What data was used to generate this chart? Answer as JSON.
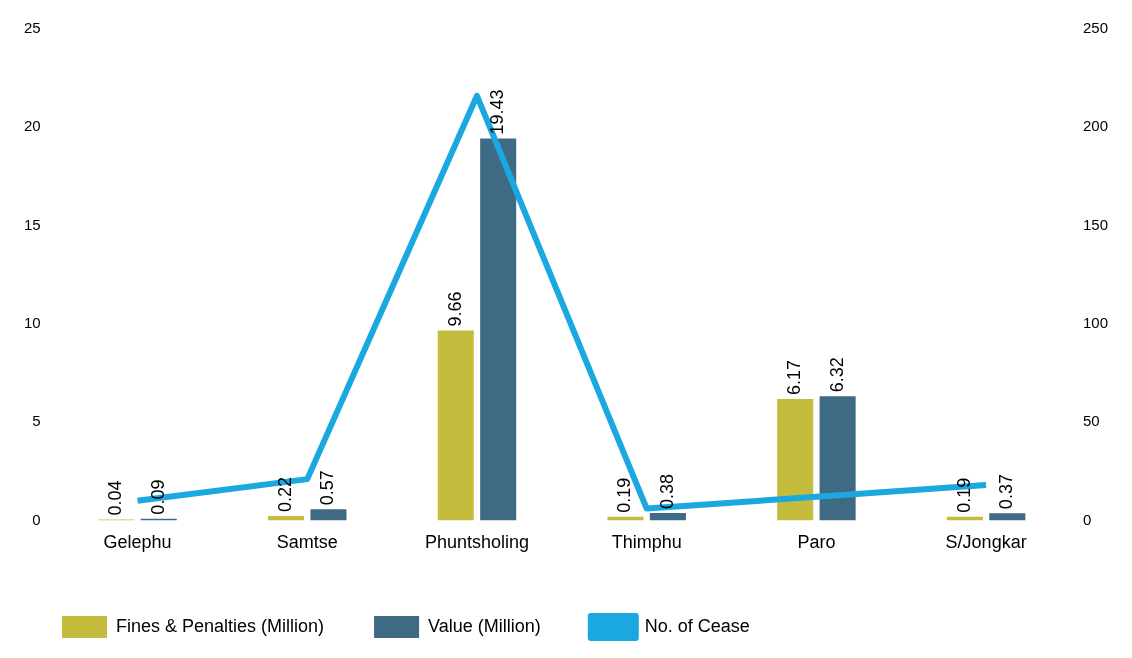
{
  "chart_data": {
    "type": "bar",
    "categories": [
      "Gelephu",
      "Samtse",
      "Phuntsholing",
      "Thimphu",
      "Paro",
      "S/Jongkar"
    ],
    "series": [
      {
        "name": "Fines & Penalties (Million)",
        "color": "#c4bc3c",
        "values": [
          0.04,
          0.22,
          9.66,
          0.19,
          6.17,
          0.19
        ],
        "value_labels": [
          "0.04",
          "0.22",
          "9.66",
          "0.19",
          "6.17",
          "0.19"
        ]
      },
      {
        "name": "Value (Million)",
        "color": "#3e6a84",
        "values": [
          0.09,
          0.57,
          19.43,
          0.38,
          6.32,
          0.37
        ],
        "value_labels": [
          "0.09",
          "0.57",
          "19.43",
          "0.38",
          "6.32",
          "0.37"
        ]
      },
      {
        "name": "No. of Cease",
        "type": "line",
        "axis": "y2",
        "color": "#1ba8e0",
        "values": [
          10,
          21,
          216,
          6,
          12,
          18
        ]
      }
    ],
    "ylim": [
      0,
      25
    ],
    "yticks": [
      0,
      5,
      10,
      15,
      20,
      25
    ],
    "y2lim": [
      0,
      250
    ],
    "y2ticks": [
      0,
      50,
      100,
      150,
      200,
      250
    ],
    "grid": false,
    "legend": "bottom",
    "marker": "none"
  }
}
